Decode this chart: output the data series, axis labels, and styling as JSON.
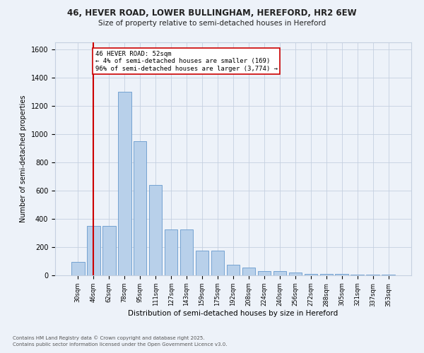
{
  "title_line1": "46, HEVER ROAD, LOWER BULLINGHAM, HEREFORD, HR2 6EW",
  "title_line2": "Size of property relative to semi-detached houses in Hereford",
  "xlabel": "Distribution of semi-detached houses by size in Hereford",
  "ylabel": "Number of semi-detached properties",
  "categories": [
    "30sqm",
    "46sqm",
    "62sqm",
    "78sqm",
    "95sqm",
    "111sqm",
    "127sqm",
    "143sqm",
    "159sqm",
    "175sqm",
    "192sqm",
    "208sqm",
    "224sqm",
    "240sqm",
    "256sqm",
    "272sqm",
    "288sqm",
    "305sqm",
    "321sqm",
    "337sqm",
    "353sqm"
  ],
  "values": [
    95,
    350,
    350,
    1300,
    950,
    640,
    325,
    325,
    175,
    175,
    75,
    55,
    30,
    30,
    18,
    12,
    10,
    8,
    5,
    5,
    5
  ],
  "bar_color": "#b8d0ea",
  "bar_edge_color": "#6699cc",
  "vline_index": 1,
  "vline_color": "#cc0000",
  "annotation_title": "46 HEVER ROAD: 52sqm",
  "annotation_line1": "← 4% of semi-detached houses are smaller (169)",
  "annotation_line2": "96% of semi-detached houses are larger (3,774) →",
  "ylim": [
    0,
    1650
  ],
  "yticks": [
    0,
    200,
    400,
    600,
    800,
    1000,
    1200,
    1400,
    1600
  ],
  "footer_line1": "Contains HM Land Registry data © Crown copyright and database right 2025.",
  "footer_line2": "Contains public sector information licensed under the Open Government Licence v3.0.",
  "bg_color": "#edf2f9",
  "grid_color": "#c5d0e0"
}
